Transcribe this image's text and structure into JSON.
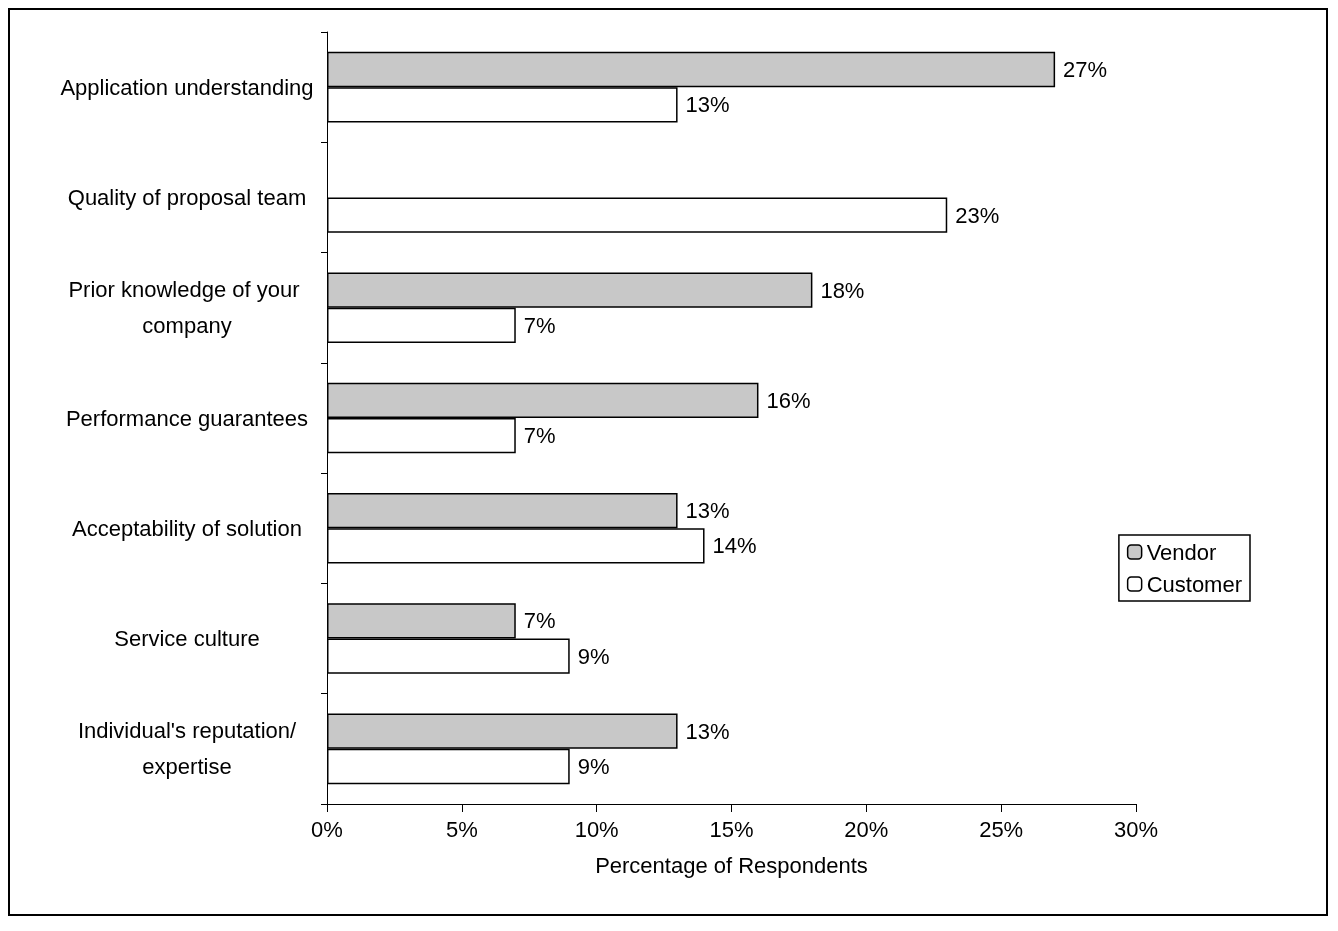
{
  "chart_data": {
    "type": "bar",
    "orientation": "horizontal",
    "xlabel": "Percentage of Respondents",
    "categories": [
      "Application understanding",
      "Quality of proposal team",
      "Prior knowledge of your company",
      "Performance guarantees",
      "Acceptability of solution",
      "Service culture",
      "Individual's reputation/expertise"
    ],
    "series": [
      {
        "name": "Vendor",
        "color": "#c8c8c8",
        "values": [
          27,
          null,
          18,
          16,
          13,
          7,
          13
        ],
        "value_labels": [
          "27%",
          null,
          "18%",
          "16%",
          "13%",
          "7%",
          "13%"
        ]
      },
      {
        "name": "Customer",
        "color": "#ffffff",
        "values": [
          13,
          23,
          7,
          7,
          14,
          9,
          9
        ],
        "value_labels": [
          "13%",
          "23%",
          "7%",
          "7%",
          "14%",
          "9%",
          "9%"
        ]
      }
    ],
    "xlim": [
      0,
      30
    ],
    "xticks": [
      {
        "value": 0,
        "label": "0%"
      },
      {
        "value": 5,
        "label": "5%"
      },
      {
        "value": 10,
        "label": "10%"
      },
      {
        "value": 15,
        "label": "15%"
      },
      {
        "value": 20,
        "label": "20%"
      },
      {
        "value": 25,
        "label": "25%"
      },
      {
        "value": 30,
        "label": "30%"
      }
    ],
    "grid": false,
    "legend": "right"
  }
}
